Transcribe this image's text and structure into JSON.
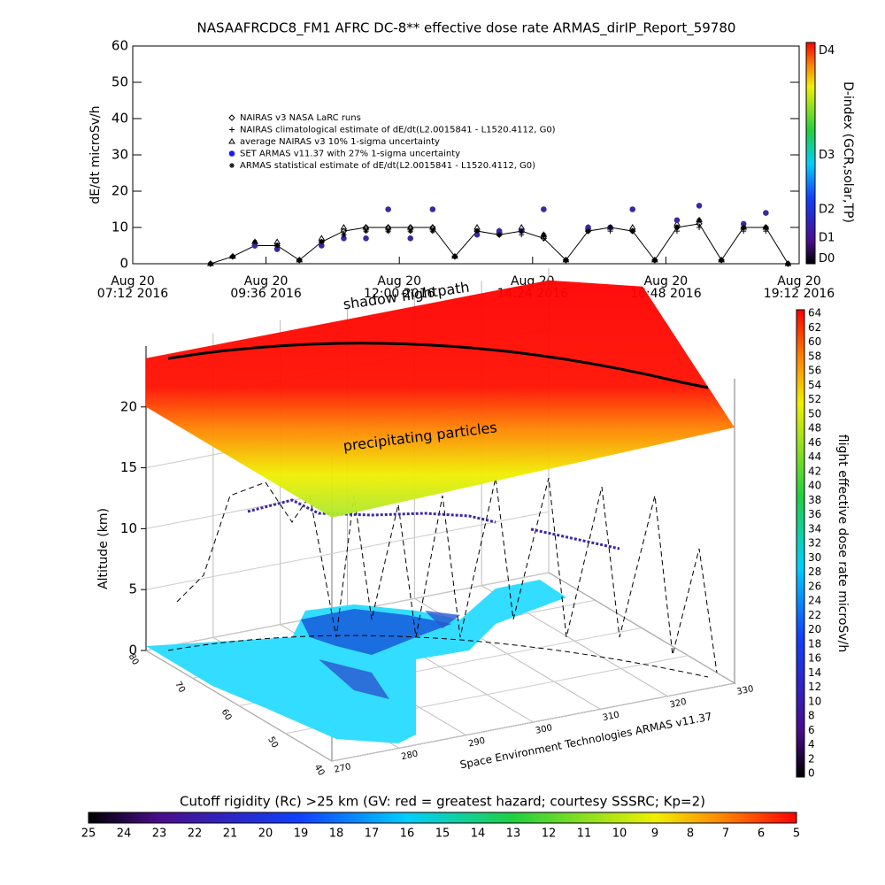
{
  "chart_data": [
    {
      "type": "line",
      "title": "NASAAFRCDC8_FM1 AFRC DC-8** effective dose rate ARMAS_dirIP_Report_59780",
      "y_label": "dE/dt microSv/h",
      "x": [
        8.6,
        9.0,
        9.4,
        9.8,
        10.2,
        10.6,
        11.0,
        11.4,
        11.8,
        12.2,
        12.6,
        13.0,
        13.4,
        13.8,
        14.2,
        14.6,
        15.0,
        15.4,
        15.8,
        16.2,
        16.6,
        17.0,
        17.4,
        17.8,
        18.2,
        18.6,
        19.0
      ],
      "xlim": [
        7.2,
        19.2
      ],
      "xticks": [
        {
          "value": 7.2,
          "label": [
            "Aug 20",
            "07:12 2016"
          ]
        },
        {
          "value": 9.6,
          "label": [
            "Aug 20",
            "09:36 2016"
          ]
        },
        {
          "value": 12.0,
          "label": [
            "Aug 20",
            "12:00 2016"
          ]
        },
        {
          "value": 14.4,
          "label": [
            "Aug 20",
            "14:24 2016"
          ]
        },
        {
          "value": 16.8,
          "label": [
            "Aug 20",
            "16:48 2016"
          ]
        },
        {
          "value": 19.2,
          "label": [
            "Aug 20",
            "19:12 2016"
          ]
        }
      ],
      "ylim": [
        0,
        60
      ],
      "yticks": [
        0,
        10,
        20,
        30,
        40,
        50,
        60
      ],
      "series": [
        {
          "name": "NAIRAS v3 NASA LaRC runs",
          "color": "#000000",
          "marker": "diamond",
          "line": true,
          "values": [
            0,
            2,
            5,
            5,
            1,
            6,
            9,
            10,
            10,
            10,
            10,
            2,
            9,
            8,
            9,
            7,
            1,
            9,
            10,
            9,
            1,
            10,
            11,
            1,
            10,
            10,
            0
          ]
        },
        {
          "name": "NAIRAS climatological estimate of dE/dt(L2.0015841 - L1520.4112, G0)",
          "color": "#000000",
          "marker": "plus",
          "line": false,
          "values": [
            0,
            2,
            5,
            5,
            1,
            5,
            8,
            9,
            9,
            9,
            9,
            2,
            8,
            8,
            8,
            7,
            1,
            9,
            9,
            9,
            1,
            9,
            10,
            1,
            9,
            9,
            0
          ]
        },
        {
          "name": "average NAIRAS v3 10% 1-sigma uncertainty",
          "color": "#000000",
          "marker": "triangle",
          "line": false,
          "values": [
            0,
            2,
            6,
            6,
            1,
            7,
            10,
            10,
            10,
            10,
            10,
            2,
            10,
            9,
            10,
            8,
            1,
            10,
            10,
            10,
            1,
            11,
            12,
            1,
            10,
            10,
            0
          ]
        },
        {
          "name": "SET ARMAS v11.37 with 27% 1-sigma uncertainty",
          "color": "#3a2aa0",
          "marker": "dot",
          "line": false,
          "values": [
            null,
            null,
            5,
            4,
            null,
            5,
            7,
            7,
            15,
            7,
            15,
            null,
            8,
            9,
            9,
            15,
            null,
            10,
            10,
            15,
            null,
            12,
            16,
            null,
            11,
            14,
            null
          ]
        },
        {
          "name": "ARMAS statistical estimate of dE/dt(L2.0015841 - L1520.4112, G0)",
          "color": "#000000",
          "marker": "asterisk",
          "line": false,
          "values": [
            0,
            2,
            6,
            5,
            1,
            6,
            8,
            9,
            9,
            9,
            9,
            2,
            9,
            8,
            9,
            8,
            1,
            9,
            10,
            9,
            1,
            10,
            12,
            1,
            10,
            10,
            0
          ]
        }
      ],
      "colorbar": {
        "label": "D-index (GCR,solar,TP)",
        "ticks": [
          "D0",
          "D1",
          "D2",
          "D3",
          "D4"
        ]
      }
    },
    {
      "type": "surface3d",
      "annotations": [
        "shadow flightpath",
        "precipitating particles"
      ],
      "credit": "Space Environment Technologies ARMAS v11.37",
      "z_label": "Altitude (km)",
      "zlim": [
        0,
        25
      ],
      "zticks": [
        0,
        5,
        10,
        15,
        20
      ],
      "xlim": [
        270,
        330
      ],
      "xticks": [
        270,
        280,
        290,
        300,
        310,
        320,
        330
      ],
      "ylim": [
        40,
        80
      ],
      "yticks": [
        40,
        50,
        60,
        70,
        80
      ],
      "colorbar": {
        "label": "flight effective dose rate microSv/h",
        "lim": [
          0,
          64
        ],
        "ticks": [
          0,
          2,
          4,
          6,
          8,
          10,
          12,
          14,
          16,
          18,
          20,
          22,
          24,
          26,
          28,
          30,
          32,
          34,
          36,
          38,
          40,
          42,
          44,
          46,
          48,
          50,
          52,
          54,
          56,
          58,
          60,
          62,
          64
        ]
      }
    },
    {
      "type": "colorbar",
      "title": "Cutoff rigidity (Rc) >25 km (GV: red = greatest hazard; courtesy SSSRC; Kp=2)",
      "xlim": [
        25,
        5
      ],
      "xticks": [
        25,
        24,
        23,
        22,
        21,
        20,
        19,
        18,
        17,
        16,
        15,
        14,
        13,
        12,
        11,
        10,
        9,
        8,
        7,
        6,
        5
      ]
    }
  ]
}
